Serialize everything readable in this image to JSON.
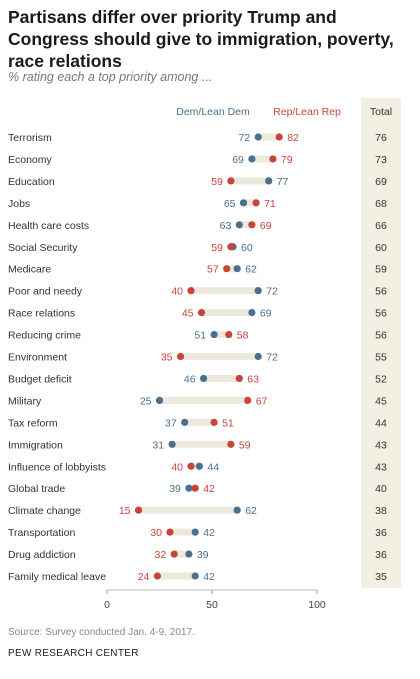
{
  "title": "Partisans differ over priority Trump and Congress should give to immigration, poverty, race relations",
  "subtitle": "% rating each a top priority among ...",
  "source": "Source: Survey conducted Jan. 4-9, 2017.",
  "org": "PEW RESEARCH CENTER",
  "colors": {
    "dem": "#4a6f8f",
    "rep": "#c8443b",
    "bar": "#ece9dc",
    "total_bg": "#f2efe3"
  },
  "chart_data": {
    "type": "dot",
    "categories": [
      "Terrorism",
      "Economy",
      "Education",
      "Jobs",
      "Health care costs",
      "Social Security",
      "Medicare",
      "Poor and needy",
      "Race relations",
      "Reducing crime",
      "Environment",
      "Budget deficit",
      "Military",
      "Tax reform",
      "Immigration",
      "Influence of lobbyists",
      "Global trade",
      "Climate change",
      "Transportation",
      "Drug addiction",
      "Family medical leave"
    ],
    "series": [
      {
        "name": "Dem/Lean Dem",
        "values": [
          72,
          69,
          77,
          65,
          63,
          60,
          62,
          72,
          69,
          51,
          72,
          46,
          25,
          37,
          31,
          44,
          39,
          62,
          42,
          39,
          42
        ]
      },
      {
        "name": "Rep/Lean Rep",
        "values": [
          82,
          79,
          59,
          71,
          69,
          59,
          57,
          40,
          45,
          58,
          35,
          63,
          67,
          51,
          59,
          40,
          42,
          15,
          30,
          32,
          24
        ]
      }
    ],
    "total_header": "Total",
    "totals": [
      76,
      73,
      69,
      68,
      66,
      60,
      59,
      56,
      56,
      56,
      55,
      52,
      45,
      44,
      43,
      43,
      40,
      38,
      36,
      36,
      35
    ],
    "xlim": [
      0,
      100
    ],
    "xticks": [
      "0",
      "50",
      "100"
    ],
    "grid": false
  }
}
